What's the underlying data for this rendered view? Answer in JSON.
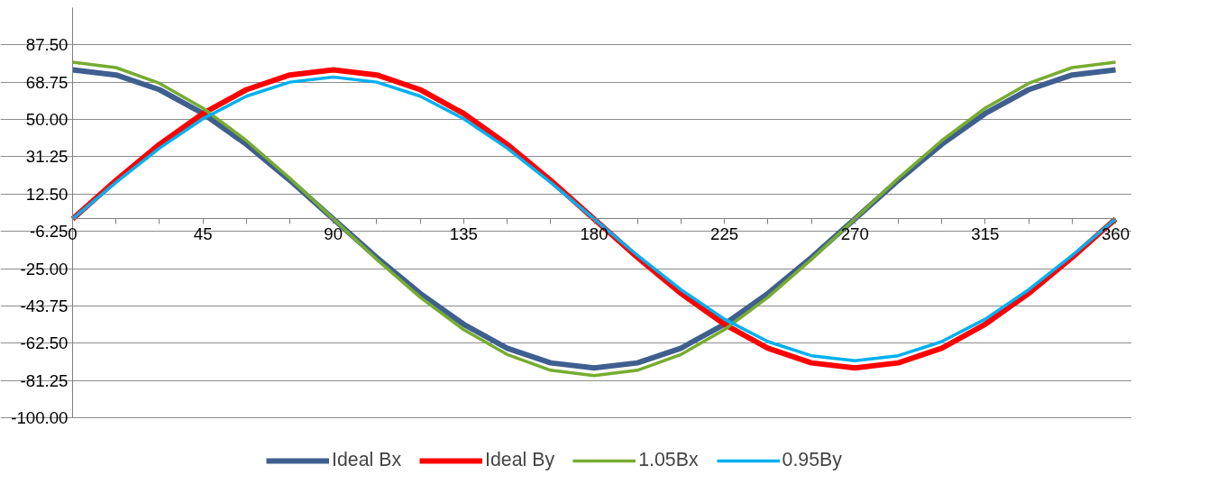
{
  "chart_data": {
    "type": "line",
    "x": [
      0,
      15,
      30,
      45,
      60,
      75,
      90,
      105,
      120,
      135,
      150,
      165,
      180,
      195,
      210,
      225,
      240,
      255,
      270,
      285,
      300,
      315,
      330,
      345,
      360
    ],
    "series": [
      {
        "name": "Ideal Bx",
        "color": "#3e5f8f",
        "values": [
          75,
          72.4,
          65.0,
          53.0,
          37.5,
          19.4,
          0,
          -19.4,
          -37.5,
          -53.0,
          -65.0,
          -72.4,
          -75,
          -72.4,
          -65.0,
          -53.0,
          -37.5,
          -19.4,
          0,
          19.4,
          37.5,
          53.0,
          65.0,
          72.4,
          75
        ]
      },
      {
        "name": "Ideal By",
        "color": "#ff0000",
        "values": [
          0,
          19.4,
          37.5,
          53.0,
          65.0,
          72.4,
          75,
          72.4,
          65.0,
          53.0,
          37.5,
          19.4,
          0,
          -19.4,
          -37.5,
          -53.0,
          -65.0,
          -72.4,
          -75,
          -72.4,
          -65.0,
          -53.0,
          -37.5,
          -19.4,
          0
        ]
      },
      {
        "name": "1.05Bx",
        "color": "#77ac30",
        "values": [
          78.8,
          76.1,
          68.2,
          55.7,
          39.4,
          20.4,
          0,
          -20.4,
          -39.4,
          -55.7,
          -68.2,
          -76.1,
          -78.8,
          -76.1,
          -68.2,
          -55.7,
          -39.4,
          -20.4,
          0,
          20.4,
          39.4,
          55.7,
          68.2,
          76.1,
          78.8
        ]
      },
      {
        "name": "0.95By",
        "color": "#00b0f0",
        "values": [
          0,
          18.4,
          35.6,
          50.4,
          61.7,
          68.8,
          71.3,
          68.8,
          61.7,
          50.4,
          35.6,
          18.4,
          0,
          -18.4,
          -35.6,
          -50.4,
          -61.7,
          -68.8,
          -71.3,
          -68.8,
          -61.7,
          -50.4,
          -35.6,
          -18.4,
          0
        ]
      }
    ],
    "xlim": [
      0,
      360
    ],
    "xticks": [
      0,
      45,
      90,
      135,
      180,
      225,
      270,
      315,
      360
    ],
    "ylim": [
      -100,
      106.25
    ],
    "yticks": [
      {
        "value": 87.5,
        "label": "87.50"
      },
      {
        "value": 68.75,
        "label": "68.75"
      },
      {
        "value": 50,
        "label": "50.00"
      },
      {
        "value": 31.25,
        "label": "31.25"
      },
      {
        "value": 12.5,
        "label": "12.50"
      },
      {
        "value": -6.25,
        "label": "-6.25"
      },
      {
        "value": -25,
        "label": "-25.00"
      },
      {
        "value": -43.75,
        "label": "-43.75"
      },
      {
        "value": -62.5,
        "label": "-62.50"
      },
      {
        "value": -81.25,
        "label": "-81.25"
      },
      {
        "value": -100,
        "label": "-100.00"
      }
    ],
    "grid": "y",
    "legend": "bottom",
    "marker": "none",
    "line_style": "solid"
  }
}
